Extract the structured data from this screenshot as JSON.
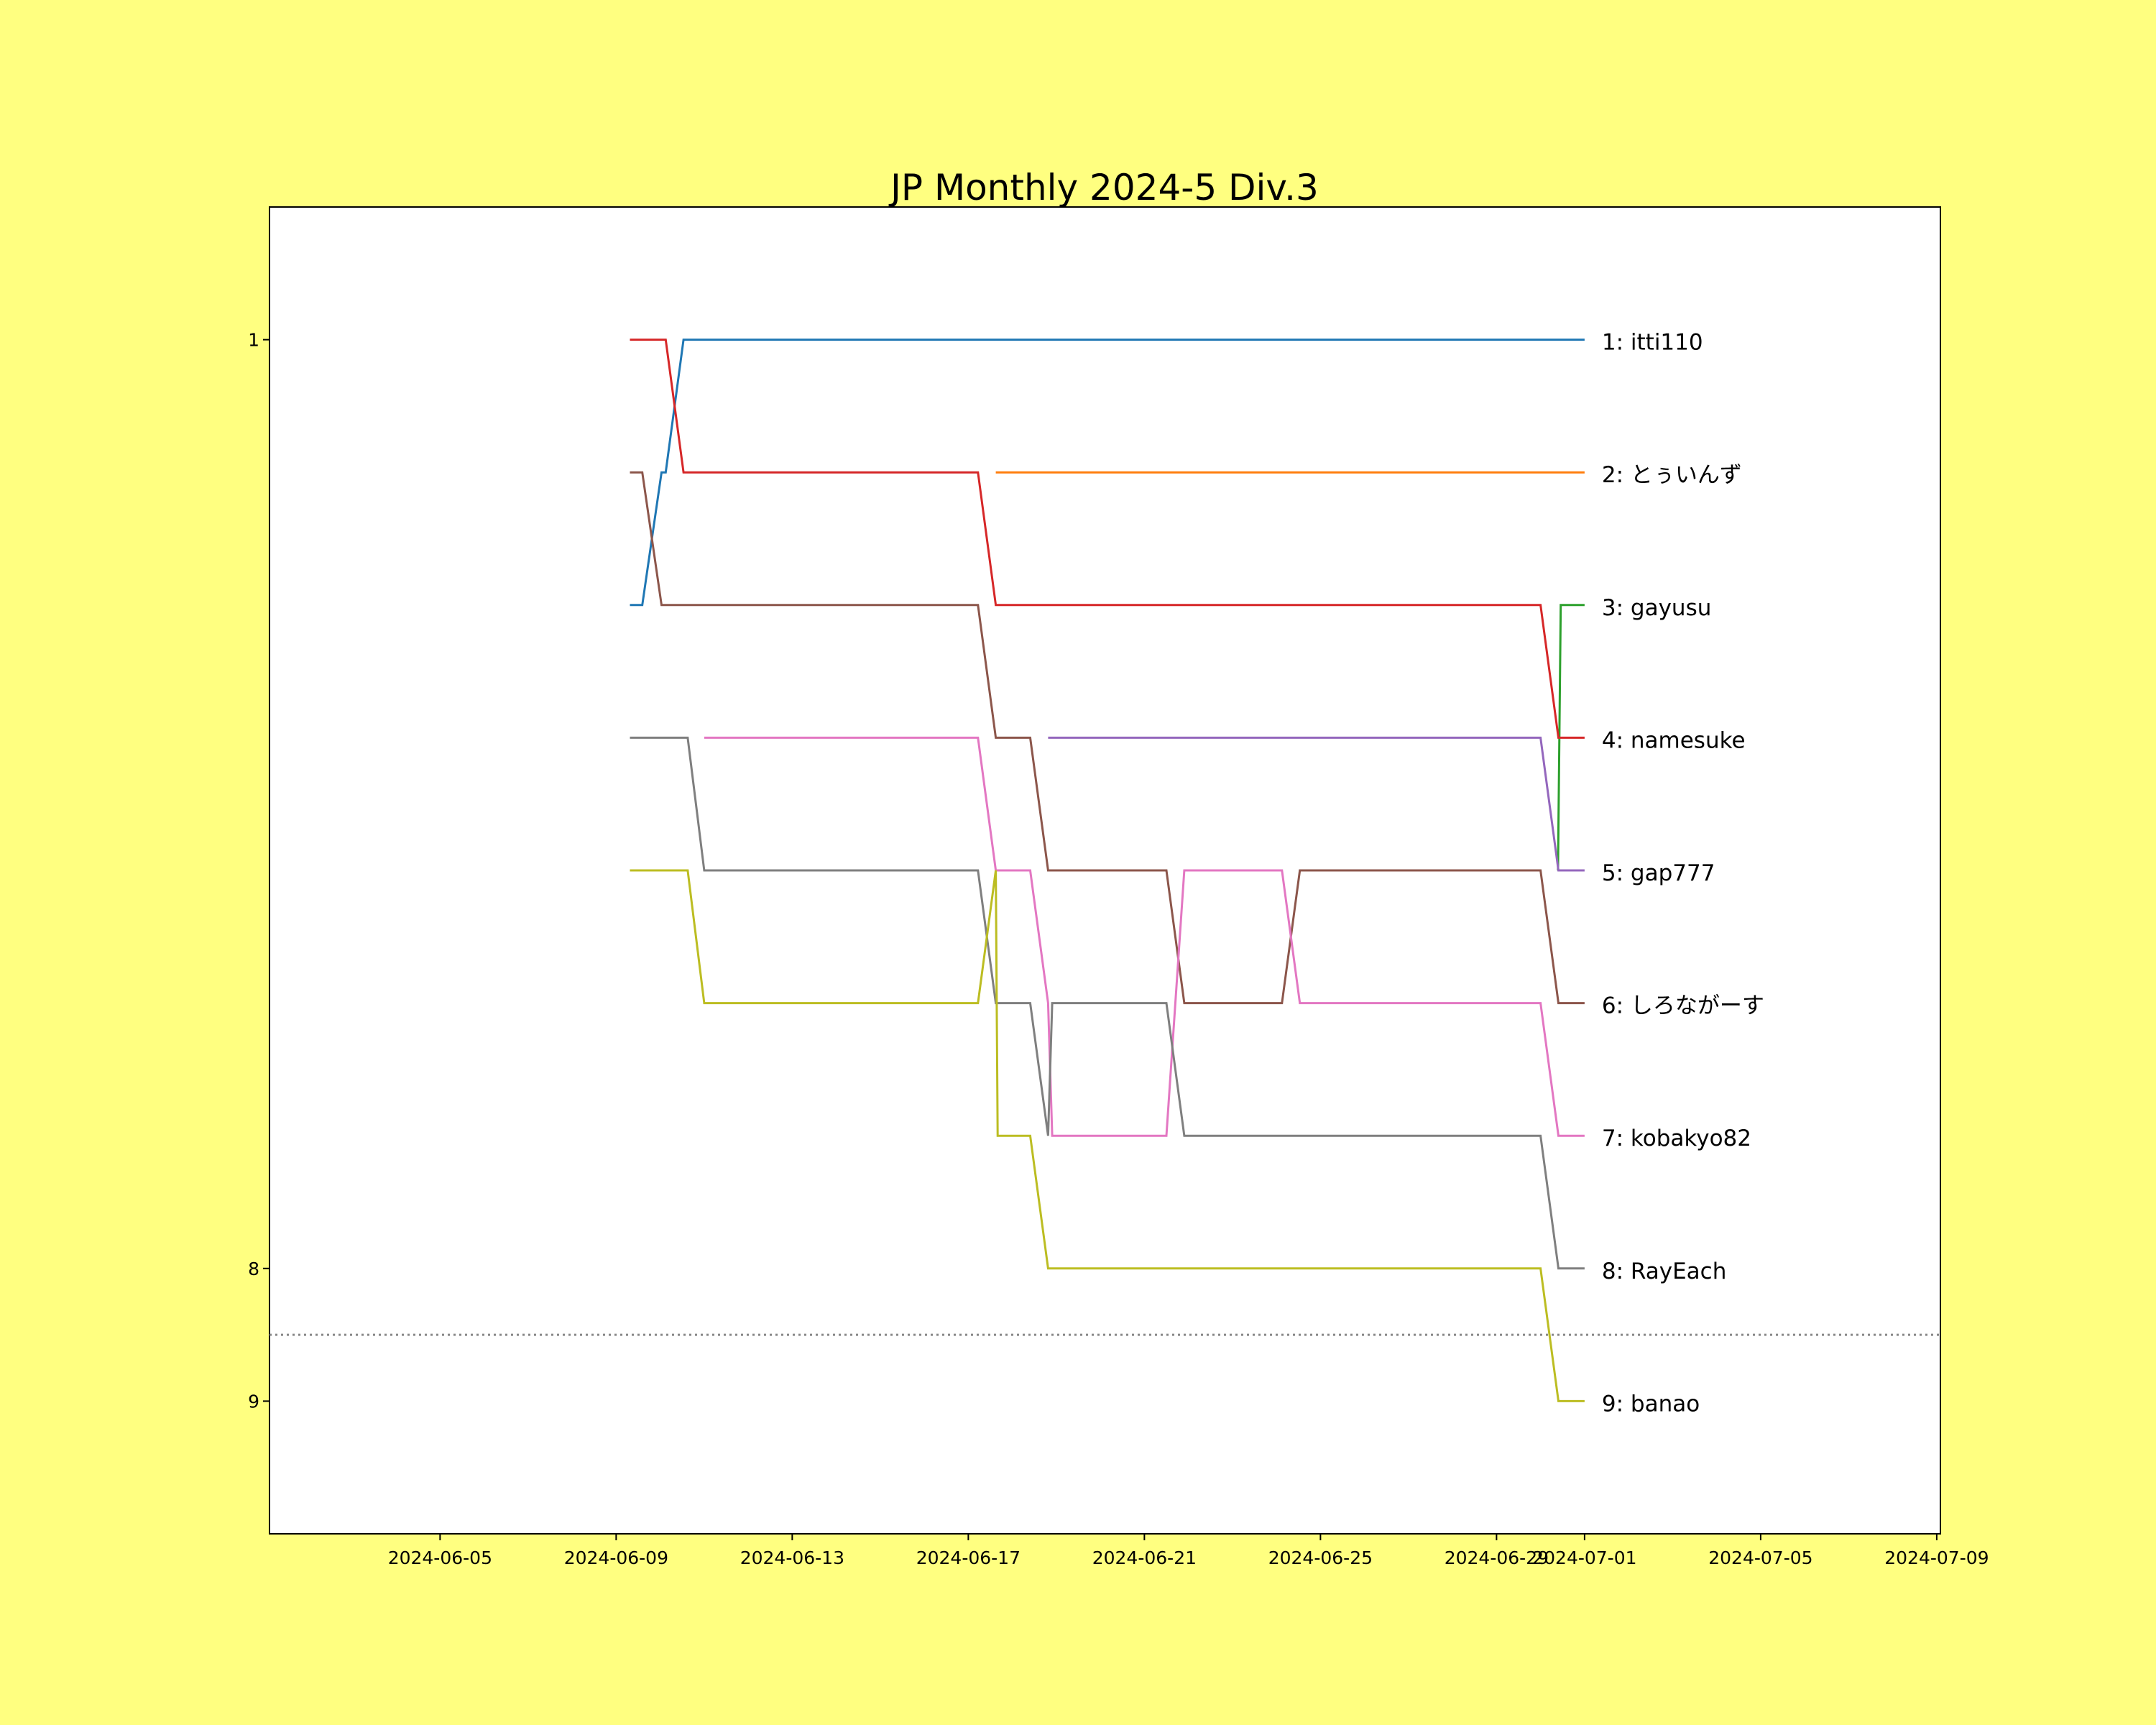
{
  "chart_data": {
    "type": "line",
    "title": "JP Monthly 2024-5 Div.3",
    "xlabel": "",
    "ylabel": "",
    "xlim": [
      "2024-06-01T03:00",
      "2024-07-09T02:00"
    ],
    "ylim": [
      10,
      0
    ],
    "y_inverted": true,
    "grid": false,
    "background_color": "#ffff80",
    "plot_background": "#ffffff",
    "xticks": [
      "2024-06-05",
      "2024-06-09",
      "2024-06-13",
      "2024-06-17",
      "2024-06-21",
      "2024-06-25",
      "2024-06-29",
      "2024-07-01",
      "2024-07-05",
      "2024-07-09"
    ],
    "yticks": [
      1,
      8,
      9
    ],
    "reference_line": {
      "y": 8.5,
      "style": "dotted",
      "color": "#888888"
    },
    "series": [
      {
        "name": "1: itti110",
        "color": "#1f77b4",
        "points": [
          [
            "2024-06-09T07:30",
            3
          ],
          [
            "2024-06-09T14:15",
            3
          ],
          [
            "2024-06-10T00:45",
            2
          ],
          [
            "2024-06-10T03:00",
            2
          ],
          [
            "2024-06-10T12:45",
            1
          ],
          [
            "2024-07-01T00:00",
            1
          ]
        ]
      },
      {
        "name": "2: とぅいんず",
        "color": "#ff7f0e",
        "points": [
          [
            "2024-06-17T15:00",
            2
          ],
          [
            "2024-07-01T00:00",
            2
          ]
        ]
      },
      {
        "name": "3: gayusu",
        "color": "#2ca02c",
        "points": [
          [
            "2024-06-30T09:30",
            5
          ],
          [
            "2024-06-30T11:00",
            3
          ],
          [
            "2024-07-01T00:00",
            3
          ]
        ]
      },
      {
        "name": "4: namesuke",
        "color": "#d62728",
        "points": [
          [
            "2024-06-09T07:30",
            1
          ],
          [
            "2024-06-10T03:00",
            1
          ],
          [
            "2024-06-10T12:45",
            2
          ],
          [
            "2024-06-17T05:15",
            2
          ],
          [
            "2024-06-17T15:00",
            3
          ],
          [
            "2024-06-30T00:00",
            3
          ],
          [
            "2024-06-30T09:45",
            4
          ],
          [
            "2024-07-01T00:00",
            4
          ]
        ]
      },
      {
        "name": "5: gap777",
        "color": "#9467bd",
        "points": [
          [
            "2024-06-18T19:30",
            4
          ],
          [
            "2024-06-30T00:00",
            4
          ],
          [
            "2024-06-30T09:45",
            5
          ],
          [
            "2024-07-01T00:00",
            5
          ]
        ]
      },
      {
        "name": "6: しろながーす",
        "color": "#8c564b",
        "points": [
          [
            "2024-06-09T07:30",
            2
          ],
          [
            "2024-06-09T14:15",
            2
          ],
          [
            "2024-06-10T00:45",
            3
          ],
          [
            "2024-06-17T05:15",
            3
          ],
          [
            "2024-06-17T15:00",
            4
          ],
          [
            "2024-06-18T09:45",
            4
          ],
          [
            "2024-06-18T19:30",
            5
          ],
          [
            "2024-06-21T12:00",
            5
          ],
          [
            "2024-06-21T21:45",
            6
          ],
          [
            "2024-06-24T03:00",
            6
          ],
          [
            "2024-06-24T12:45",
            5
          ],
          [
            "2024-06-30T00:00",
            5
          ],
          [
            "2024-06-30T09:45",
            6
          ],
          [
            "2024-07-01T00:00",
            6
          ]
        ]
      },
      {
        "name": "7: kobakyo82",
        "color": "#e377c2",
        "points": [
          [
            "2024-06-11T00:00",
            4
          ],
          [
            "2024-06-17T05:15",
            4
          ],
          [
            "2024-06-17T15:00",
            5
          ],
          [
            "2024-06-18T09:45",
            5
          ],
          [
            "2024-06-18T19:30",
            6
          ],
          [
            "2024-06-18T21:45",
            7
          ],
          [
            "2024-06-21T12:00",
            7
          ],
          [
            "2024-06-21T21:45",
            5
          ],
          [
            "2024-06-24T03:00",
            5
          ],
          [
            "2024-06-24T12:45",
            6
          ],
          [
            "2024-06-30T00:00",
            6
          ],
          [
            "2024-06-30T09:45",
            7
          ],
          [
            "2024-07-01T00:00",
            7
          ]
        ]
      },
      {
        "name": "8: RayEach",
        "color": "#7f7f7f",
        "points": [
          [
            "2024-06-09T07:30",
            4
          ],
          [
            "2024-06-10T15:00",
            4
          ],
          [
            "2024-06-11T00:00",
            5
          ],
          [
            "2024-06-17T05:15",
            5
          ],
          [
            "2024-06-17T15:00",
            6
          ],
          [
            "2024-06-18T09:45",
            6
          ],
          [
            "2024-06-18T19:30",
            7
          ],
          [
            "2024-06-18T21:45",
            6
          ],
          [
            "2024-06-21T12:00",
            6
          ],
          [
            "2024-06-21T21:45",
            7
          ],
          [
            "2024-06-30T00:00",
            7
          ],
          [
            "2024-06-30T09:45",
            8
          ],
          [
            "2024-07-01T00:00",
            8
          ]
        ]
      },
      {
        "name": "9: banao",
        "color": "#bcbd22",
        "points": [
          [
            "2024-06-09T07:30",
            5
          ],
          [
            "2024-06-10T15:00",
            5
          ],
          [
            "2024-06-11T00:00",
            6
          ],
          [
            "2024-06-17T05:15",
            6
          ],
          [
            "2024-06-17T15:00",
            5
          ],
          [
            "2024-06-17T16:00",
            7
          ],
          [
            "2024-06-18T09:45",
            7
          ],
          [
            "2024-06-18T19:30",
            8
          ],
          [
            "2024-06-30T00:00",
            8
          ],
          [
            "2024-06-30T09:45",
            9
          ],
          [
            "2024-07-01T00:00",
            9
          ]
        ]
      }
    ]
  }
}
